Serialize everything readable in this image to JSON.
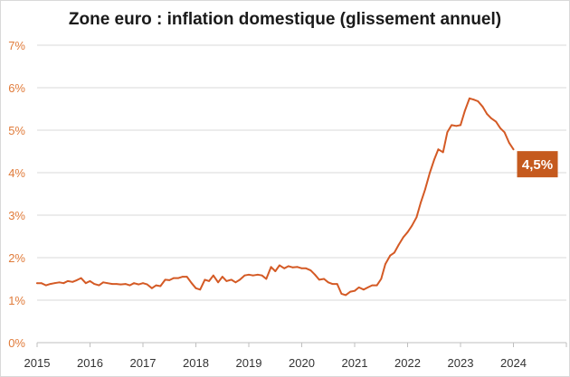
{
  "chart_data": {
    "type": "line",
    "title": "Zone euro : inflation domestique (glissement annuel)",
    "xlabel": "",
    "ylabel": "",
    "ylim": [
      0,
      7
    ],
    "xlim": [
      2015.0,
      2025.0
    ],
    "yticks": [
      0,
      1,
      2,
      3,
      4,
      5,
      6,
      7
    ],
    "ytick_labels": [
      "0%",
      "1%",
      "2%",
      "3%",
      "4%",
      "5%",
      "6%",
      "7%"
    ],
    "xticks": [
      2015,
      2016,
      2017,
      2018,
      2019,
      2020,
      2021,
      2022,
      2023,
      2024
    ],
    "xtick_labels": [
      "2015",
      "2016",
      "2017",
      "2018",
      "2019",
      "2020",
      "2021",
      "2022",
      "2023",
      "2024"
    ],
    "grid": true,
    "legend": "none",
    "line_color": "#d45a25",
    "callout": {
      "text": "4,5%",
      "color": "#c55a1e"
    },
    "series": [
      {
        "values": [
          [
            2015.0,
            1.4
          ],
          [
            2015.08,
            1.4
          ],
          [
            2015.17,
            1.35
          ],
          [
            2015.25,
            1.38
          ],
          [
            2015.33,
            1.4
          ],
          [
            2015.42,
            1.42
          ],
          [
            2015.5,
            1.4
          ],
          [
            2015.58,
            1.45
          ],
          [
            2015.67,
            1.43
          ],
          [
            2015.75,
            1.47
          ],
          [
            2015.83,
            1.52
          ],
          [
            2015.92,
            1.4
          ],
          [
            2016.0,
            1.45
          ],
          [
            2016.08,
            1.38
          ],
          [
            2016.17,
            1.35
          ],
          [
            2016.25,
            1.42
          ],
          [
            2016.33,
            1.4
          ],
          [
            2016.42,
            1.38
          ],
          [
            2016.5,
            1.38
          ],
          [
            2016.58,
            1.37
          ],
          [
            2016.67,
            1.38
          ],
          [
            2016.75,
            1.35
          ],
          [
            2016.83,
            1.4
          ],
          [
            2016.92,
            1.37
          ],
          [
            2017.0,
            1.4
          ],
          [
            2017.08,
            1.37
          ],
          [
            2017.17,
            1.28
          ],
          [
            2017.25,
            1.35
          ],
          [
            2017.33,
            1.33
          ],
          [
            2017.42,
            1.48
          ],
          [
            2017.5,
            1.47
          ],
          [
            2017.58,
            1.52
          ],
          [
            2017.67,
            1.52
          ],
          [
            2017.75,
            1.55
          ],
          [
            2017.83,
            1.55
          ],
          [
            2017.92,
            1.4
          ],
          [
            2018.0,
            1.28
          ],
          [
            2018.08,
            1.25
          ],
          [
            2018.17,
            1.48
          ],
          [
            2018.25,
            1.45
          ],
          [
            2018.33,
            1.58
          ],
          [
            2018.42,
            1.42
          ],
          [
            2018.5,
            1.55
          ],
          [
            2018.58,
            1.45
          ],
          [
            2018.67,
            1.48
          ],
          [
            2018.75,
            1.42
          ],
          [
            2018.83,
            1.48
          ],
          [
            2018.92,
            1.58
          ],
          [
            2019.0,
            1.6
          ],
          [
            2019.08,
            1.58
          ],
          [
            2019.17,
            1.6
          ],
          [
            2019.25,
            1.58
          ],
          [
            2019.33,
            1.5
          ],
          [
            2019.42,
            1.78
          ],
          [
            2019.5,
            1.68
          ],
          [
            2019.58,
            1.82
          ],
          [
            2019.67,
            1.75
          ],
          [
            2019.75,
            1.8
          ],
          [
            2019.83,
            1.77
          ],
          [
            2019.92,
            1.78
          ],
          [
            2020.0,
            1.75
          ],
          [
            2020.08,
            1.75
          ],
          [
            2020.17,
            1.7
          ],
          [
            2020.25,
            1.6
          ],
          [
            2020.33,
            1.48
          ],
          [
            2020.42,
            1.5
          ],
          [
            2020.5,
            1.42
          ],
          [
            2020.58,
            1.38
          ],
          [
            2020.67,
            1.38
          ],
          [
            2020.75,
            1.15
          ],
          [
            2020.83,
            1.12
          ],
          [
            2020.92,
            1.2
          ],
          [
            2021.0,
            1.22
          ],
          [
            2021.08,
            1.3
          ],
          [
            2021.17,
            1.25
          ],
          [
            2021.25,
            1.3
          ],
          [
            2021.33,
            1.35
          ],
          [
            2021.42,
            1.35
          ],
          [
            2021.5,
            1.5
          ],
          [
            2021.58,
            1.85
          ],
          [
            2021.67,
            2.05
          ],
          [
            2021.75,
            2.12
          ],
          [
            2021.83,
            2.3
          ],
          [
            2021.92,
            2.48
          ],
          [
            2022.0,
            2.6
          ],
          [
            2022.08,
            2.75
          ],
          [
            2022.17,
            2.95
          ],
          [
            2022.25,
            3.3
          ],
          [
            2022.33,
            3.6
          ],
          [
            2022.42,
            4.0
          ],
          [
            2022.5,
            4.3
          ],
          [
            2022.58,
            4.55
          ],
          [
            2022.67,
            4.48
          ],
          [
            2022.75,
            4.95
          ],
          [
            2022.83,
            5.12
          ],
          [
            2022.92,
            5.1
          ],
          [
            2023.0,
            5.12
          ],
          [
            2023.08,
            5.45
          ],
          [
            2023.17,
            5.75
          ],
          [
            2023.25,
            5.72
          ],
          [
            2023.33,
            5.68
          ],
          [
            2023.42,
            5.55
          ],
          [
            2023.5,
            5.38
          ],
          [
            2023.58,
            5.28
          ],
          [
            2023.67,
            5.2
          ],
          [
            2023.75,
            5.05
          ],
          [
            2023.83,
            4.95
          ],
          [
            2023.92,
            4.7
          ],
          [
            2024.0,
            4.55
          ]
        ]
      }
    ]
  }
}
